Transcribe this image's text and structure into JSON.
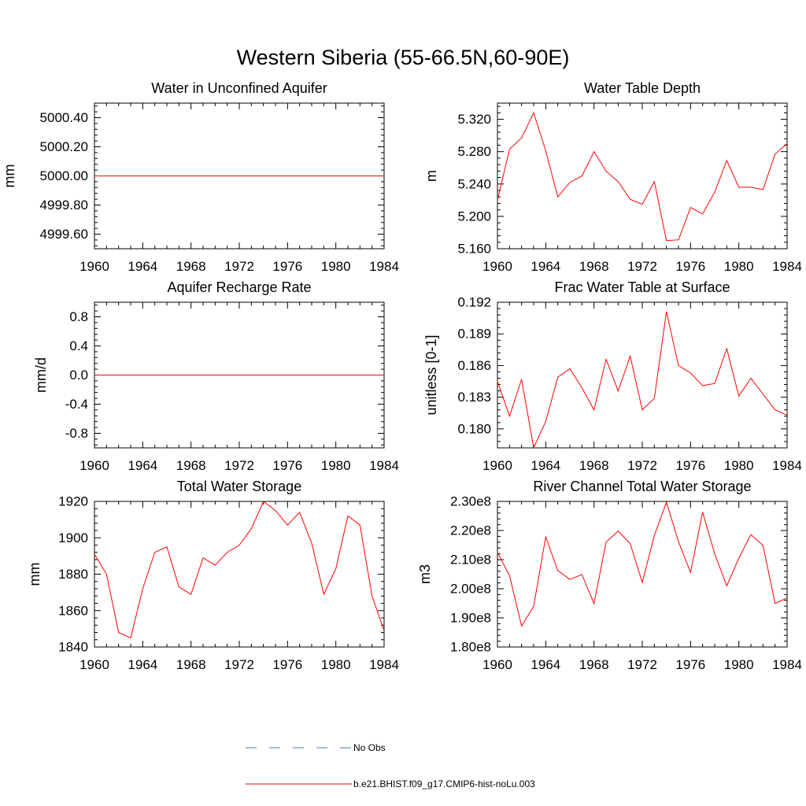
{
  "figure_title": "Western Siberia (55-66.5N,60-90E)",
  "legend": {
    "items": [
      {
        "label": "No Obs",
        "color": "#5a6fb3",
        "dash": "14 16"
      },
      {
        "label": "b.e21.BHIST.f09_g17.CMIP6-hist-noLu.003",
        "color": "#ff0000",
        "dash": ""
      }
    ]
  },
  "chart_data": [
    {
      "type": "line",
      "title": "Water in Unconfined Aquifer",
      "ylabel": "mm",
      "xlim": [
        1960,
        1984
      ],
      "ylim": [
        4999.5,
        5000.5
      ],
      "xticks": [
        1960,
        1964,
        1968,
        1972,
        1976,
        1980,
        1984
      ],
      "yticks": [
        4999.6,
        4999.8,
        5000.0,
        5000.2,
        5000.4
      ],
      "ytick_labels": [
        "4999.60",
        "4999.80",
        "5000.00",
        "5000.20",
        "5000.40"
      ],
      "x": [
        1960,
        1961,
        1962,
        1963,
        1964,
        1965,
        1966,
        1967,
        1968,
        1969,
        1970,
        1971,
        1972,
        1973,
        1974,
        1975,
        1976,
        1977,
        1978,
        1979,
        1980,
        1981,
        1982,
        1983,
        1984
      ],
      "series": [
        {
          "color": "#ff0000",
          "values": [
            5000,
            5000,
            5000,
            5000,
            5000,
            5000,
            5000,
            5000,
            5000,
            5000,
            5000,
            5000,
            5000,
            5000,
            5000,
            5000,
            5000,
            5000,
            5000,
            5000,
            5000,
            5000,
            5000,
            5000,
            5000
          ]
        }
      ]
    },
    {
      "type": "line",
      "title": "Water Table Depth",
      "ylabel": "m",
      "xlim": [
        1960,
        1984
      ],
      "ylim": [
        5.16,
        5.34
      ],
      "xticks": [
        1960,
        1964,
        1968,
        1972,
        1976,
        1980,
        1984
      ],
      "yticks": [
        5.16,
        5.2,
        5.24,
        5.28,
        5.32
      ],
      "ytick_labels": [
        "5.160",
        "5.200",
        "5.240",
        "5.280",
        "5.320"
      ],
      "x": [
        1960,
        1961,
        1962,
        1963,
        1964,
        1965,
        1966,
        1967,
        1968,
        1969,
        1970,
        1971,
        1972,
        1973,
        1974,
        1975,
        1976,
        1977,
        1978,
        1979,
        1980,
        1981,
        1982,
        1983,
        1984
      ],
      "series": [
        {
          "color": "#ff0000",
          "values": [
            5.22,
            5.283,
            5.297,
            5.328,
            5.281,
            5.224,
            5.242,
            5.25,
            5.28,
            5.256,
            5.243,
            5.221,
            5.215,
            5.243,
            5.17,
            5.171,
            5.211,
            5.203,
            5.23,
            5.269,
            5.236,
            5.236,
            5.233,
            5.277,
            5.29
          ]
        }
      ]
    },
    {
      "type": "line",
      "title": "Aquifer Recharge Rate",
      "ylabel": "mm/d",
      "xlim": [
        1960,
        1984
      ],
      "ylim": [
        -1.0,
        1.0
      ],
      "xticks": [
        1960,
        1964,
        1968,
        1972,
        1976,
        1980,
        1984
      ],
      "yticks": [
        -0.8,
        -0.4,
        0.0,
        0.4,
        0.8
      ],
      "ytick_labels": [
        "-0.8",
        "-0.4",
        "0.0",
        "0.4",
        "0.8"
      ],
      "x": [
        1960,
        1961,
        1962,
        1963,
        1964,
        1965,
        1966,
        1967,
        1968,
        1969,
        1970,
        1971,
        1972,
        1973,
        1974,
        1975,
        1976,
        1977,
        1978,
        1979,
        1980,
        1981,
        1982,
        1983,
        1984
      ],
      "series": [
        {
          "color": "#ff0000",
          "values": [
            0,
            0,
            0,
            0,
            0,
            0,
            0,
            0,
            0,
            0,
            0,
            0,
            0,
            0,
            0,
            0,
            0,
            0,
            0,
            0,
            0,
            0,
            0,
            0,
            0
          ]
        }
      ]
    },
    {
      "type": "line",
      "title": "Frac Water Table at Surface",
      "ylabel": "unitless [0-1]",
      "xlim": [
        1960,
        1984
      ],
      "ylim": [
        0.1782,
        0.192
      ],
      "xticks": [
        1960,
        1964,
        1968,
        1972,
        1976,
        1980,
        1984
      ],
      "yticks": [
        0.18,
        0.183,
        0.186,
        0.189,
        0.192
      ],
      "ytick_labels": [
        "0.180",
        "0.183",
        "0.186",
        "0.189",
        "0.192"
      ],
      "x": [
        1960,
        1961,
        1962,
        1963,
        1964,
        1965,
        1966,
        1967,
        1968,
        1969,
        1970,
        1971,
        1972,
        1973,
        1974,
        1975,
        1976,
        1977,
        1978,
        1979,
        1980,
        1981,
        1982,
        1983,
        1984
      ],
      "series": [
        {
          "color": "#ff0000",
          "values": [
            0.1845,
            0.1812,
            0.1847,
            0.1782,
            0.1807,
            0.1849,
            0.1857,
            0.1839,
            0.1818,
            0.1866,
            0.1836,
            0.1869,
            0.1818,
            0.1829,
            0.1911,
            0.186,
            0.1853,
            0.1841,
            0.1843,
            0.1876,
            0.1831,
            0.1848,
            0.1833,
            0.1818,
            0.1813
          ]
        }
      ]
    },
    {
      "type": "line",
      "title": "Total Water Storage",
      "ylabel": "mm",
      "xlim": [
        1960,
        1984
      ],
      "ylim": [
        1840,
        1920
      ],
      "xticks": [
        1960,
        1964,
        1968,
        1972,
        1976,
        1980,
        1984
      ],
      "yticks": [
        1840,
        1860,
        1880,
        1900,
        1920
      ],
      "ytick_labels": [
        "1840",
        "1860",
        "1880",
        "1900",
        "1920"
      ],
      "x": [
        1960,
        1961,
        1962,
        1963,
        1964,
        1965,
        1966,
        1967,
        1968,
        1969,
        1970,
        1971,
        1972,
        1973,
        1974,
        1975,
        1976,
        1977,
        1978,
        1979,
        1980,
        1981,
        1982,
        1983,
        1984
      ],
      "series": [
        {
          "color": "#ff0000",
          "values": [
            1891,
            1880,
            1848,
            1845,
            1872,
            1892,
            1895,
            1873,
            1869,
            1889,
            1885,
            1892,
            1896,
            1905,
            1920,
            1915,
            1907,
            1914,
            1897,
            1869,
            1883,
            1912,
            1907,
            1868,
            1849
          ]
        }
      ]
    },
    {
      "type": "line",
      "title": "River Channel Total Water Storage",
      "ylabel": "m3",
      "xlim": [
        1960,
        1984
      ],
      "ylim": [
        180000000,
        230000000
      ],
      "xticks": [
        1960,
        1964,
        1968,
        1972,
        1976,
        1980,
        1984
      ],
      "yticks": [
        180000000,
        190000000,
        200000000,
        210000000,
        220000000,
        230000000
      ],
      "ytick_labels": [
        "1.80e8",
        "1.90e8",
        "2.00e8",
        "2.10e8",
        "2.20e8",
        "2.30e8"
      ],
      "x": [
        1960,
        1961,
        1962,
        1963,
        1964,
        1965,
        1966,
        1967,
        1968,
        1969,
        1970,
        1971,
        1972,
        1973,
        1974,
        1975,
        1976,
        1977,
        1978,
        1979,
        1980,
        1981,
        1982,
        1983,
        1984
      ],
      "series": [
        {
          "color": "#ff0000",
          "values": [
            212500000,
            204500000,
            187200000,
            194000000,
            217800000,
            206300000,
            203200000,
            204900000,
            194900000,
            216000000,
            219800000,
            215500000,
            202200000,
            218300000,
            229700000,
            216200000,
            205600000,
            226300000,
            212000000,
            201000000,
            210500000,
            218600000,
            214900000,
            195000000,
            196800000
          ]
        }
      ]
    }
  ]
}
